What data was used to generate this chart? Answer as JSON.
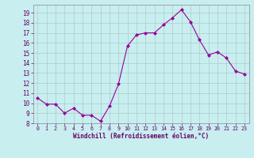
{
  "x": [
    0,
    1,
    2,
    3,
    4,
    5,
    6,
    7,
    8,
    9,
    10,
    11,
    12,
    13,
    14,
    15,
    16,
    17,
    18,
    19,
    20,
    21,
    22,
    23
  ],
  "y": [
    10.5,
    9.9,
    9.9,
    9.0,
    9.5,
    8.8,
    8.8,
    8.2,
    9.7,
    11.9,
    15.7,
    16.8,
    17.0,
    17.0,
    17.8,
    18.5,
    19.3,
    18.1,
    16.3,
    14.8,
    15.1,
    14.5,
    13.2,
    12.9
  ],
  "line_color": "#990099",
  "marker": "D",
  "marker_size": 2.0,
  "bg_color": "#c8eef0",
  "grid_color": "#aacccc",
  "xlabel": "Windchill (Refroidissement éolien,°C)",
  "xlabel_color": "#660066",
  "tick_color": "#660066",
  "xlim": [
    -0.5,
    23.5
  ],
  "ylim": [
    8,
    19.8
  ],
  "yticks": [
    8,
    9,
    10,
    11,
    12,
    13,
    14,
    15,
    16,
    17,
    18,
    19
  ],
  "xticks": [
    0,
    1,
    2,
    3,
    4,
    5,
    6,
    7,
    8,
    9,
    10,
    11,
    12,
    13,
    14,
    15,
    16,
    17,
    18,
    19,
    20,
    21,
    22,
    23
  ]
}
